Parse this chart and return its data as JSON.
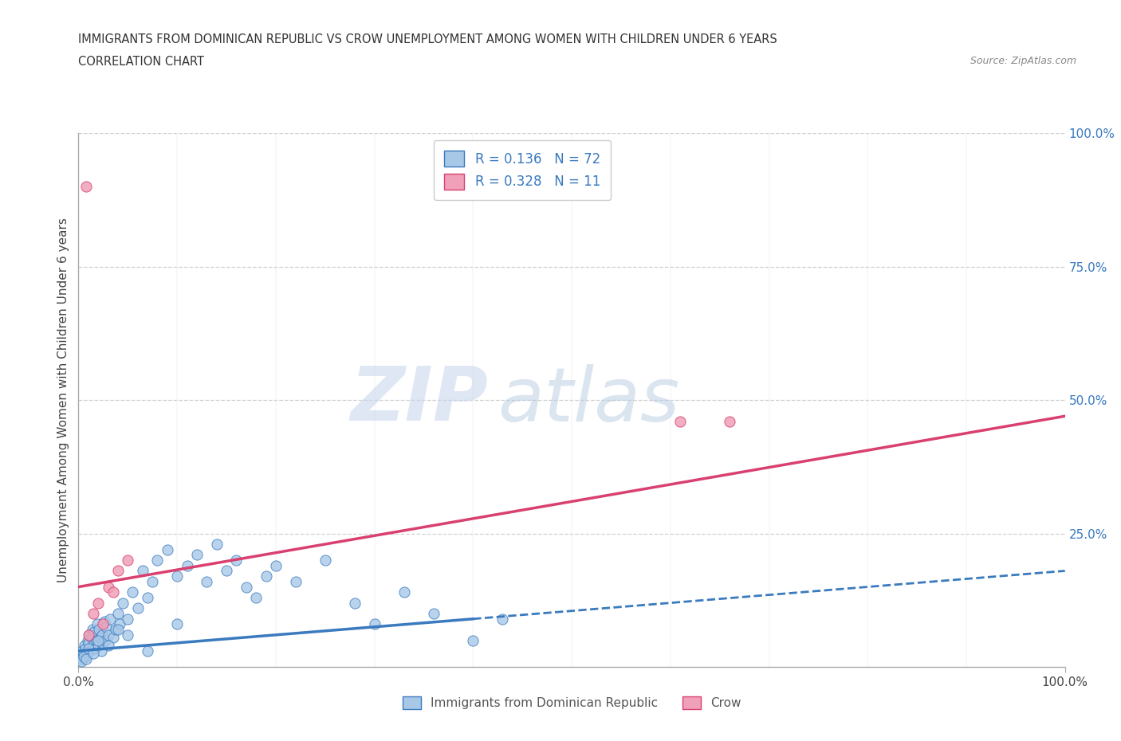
{
  "title": "IMMIGRANTS FROM DOMINICAN REPUBLIC VS CROW UNEMPLOYMENT AMONG WOMEN WITH CHILDREN UNDER 6 YEARS",
  "subtitle": "CORRELATION CHART",
  "source": "Source: ZipAtlas.com",
  "ylabel": "Unemployment Among Women with Children Under 6 years",
  "r_blue": 0.136,
  "n_blue": 72,
  "r_pink": 0.328,
  "n_pink": 11,
  "blue_scatter_x": [
    0.2,
    0.3,
    0.4,
    0.5,
    0.6,
    0.7,
    0.8,
    0.9,
    1.0,
    1.1,
    1.2,
    1.3,
    1.4,
    1.5,
    1.6,
    1.7,
    1.8,
    1.9,
    2.0,
    2.1,
    2.2,
    2.3,
    2.4,
    2.5,
    2.6,
    2.7,
    2.8,
    3.0,
    3.2,
    3.5,
    3.8,
    4.0,
    4.2,
    4.5,
    5.0,
    5.5,
    6.0,
    6.5,
    7.0,
    7.5,
    8.0,
    9.0,
    10.0,
    11.0,
    12.0,
    13.0,
    14.0,
    15.0,
    16.0,
    17.0,
    18.0,
    19.0,
    20.0,
    22.0,
    25.0,
    28.0,
    30.0,
    33.0,
    36.0,
    40.0,
    43.0,
    0.3,
    0.5,
    0.8,
    1.0,
    1.5,
    2.0,
    3.0,
    4.0,
    5.0,
    7.0,
    10.0
  ],
  "blue_scatter_y": [
    2.0,
    1.5,
    3.0,
    2.5,
    4.0,
    3.5,
    2.0,
    5.0,
    4.5,
    6.0,
    3.0,
    5.5,
    7.0,
    4.0,
    6.5,
    3.5,
    5.0,
    8.0,
    4.0,
    7.0,
    5.5,
    3.0,
    6.0,
    4.5,
    8.5,
    5.0,
    7.5,
    6.0,
    9.0,
    5.5,
    7.0,
    10.0,
    8.0,
    12.0,
    9.0,
    14.0,
    11.0,
    18.0,
    13.0,
    16.0,
    20.0,
    22.0,
    17.0,
    19.0,
    21.0,
    16.0,
    23.0,
    18.0,
    20.0,
    15.0,
    13.0,
    17.0,
    19.0,
    16.0,
    20.0,
    12.0,
    8.0,
    14.0,
    10.0,
    5.0,
    9.0,
    1.0,
    2.0,
    1.5,
    3.5,
    2.5,
    5.0,
    4.0,
    7.0,
    6.0,
    3.0,
    8.0
  ],
  "pink_scatter_x": [
    0.8,
    1.0,
    1.5,
    2.0,
    2.5,
    3.0,
    4.0,
    5.0,
    61.0,
    66.0,
    3.5
  ],
  "pink_scatter_y": [
    90.0,
    6.0,
    10.0,
    12.0,
    8.0,
    15.0,
    18.0,
    20.0,
    46.0,
    46.0,
    14.0
  ],
  "blue_color": "#a8c8e8",
  "pink_color": "#f0a0b8",
  "blue_line_color": "#3a7abf",
  "pink_line_color": "#d94070",
  "blue_line_x0": 0,
  "blue_line_y0": 3.0,
  "blue_line_x1": 100,
  "blue_line_y1": 18.0,
  "blue_solid_end": 40,
  "pink_line_x0": 0,
  "pink_line_y0": 15.0,
  "pink_line_x1": 100,
  "pink_line_y1": 47.0,
  "watermark_zip": "ZIP",
  "watermark_atlas": "atlas",
  "background_color": "#ffffff",
  "grid_color": "#d0d0d0",
  "xlim": [
    0,
    100
  ],
  "ylim": [
    0,
    100
  ]
}
